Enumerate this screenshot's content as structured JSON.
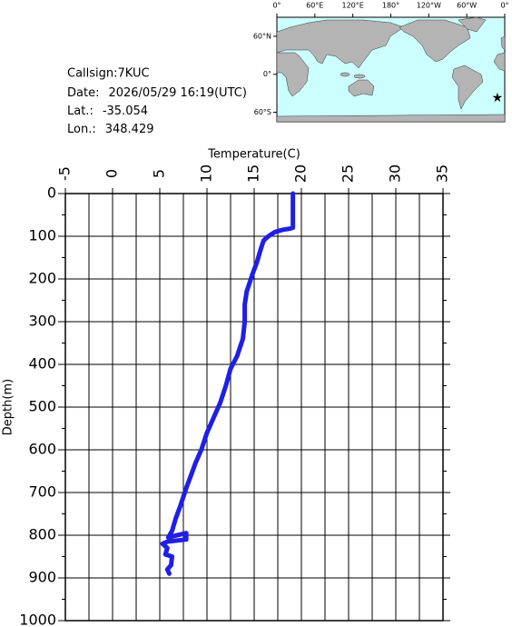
{
  "info": {
    "callsign": "Callsign:7KUC",
    "date_label": "Date:",
    "date": "2026/05/29 16:19(UTC)",
    "lat_label": "Lat.:",
    "lon_label": "Lon.:"
  },
  "map": {
    "type": "map",
    "lonlim": [
      0,
      360
    ],
    "latlim": [
      -75,
      90
    ],
    "lonticks": [
      {
        "value": 0,
        "label": "0°"
      },
      {
        "value": 60,
        "label": "60°E"
      },
      {
        "value": 120,
        "label": "120°E"
      },
      {
        "value": 180,
        "label": "180°"
      },
      {
        "value": 240,
        "label": "120°W"
      },
      {
        "value": 300,
        "label": "60°W"
      },
      {
        "value": 360,
        "label": "0°"
      }
    ],
    "latticks": [
      {
        "value": 60,
        "label": "60°N"
      },
      {
        "value": 0,
        "label": "0°"
      },
      {
        "value": -60,
        "label": "60°S"
      }
    ],
    "station": {
      "lon": 348.429,
      "lat": -35.054,
      "color": "#ff0000"
    }
  },
  "chart_data": {
    "type": "line",
    "xlabel": "Temperature(C)",
    "ylabel": "Depth(m)",
    "color": "#1f1fe6",
    "xlim": [
      -5,
      35
    ],
    "xticks": [
      -5,
      0,
      5,
      10,
      15,
      20,
      25,
      30,
      35
    ],
    "ylim": [
      0,
      1000
    ],
    "yticks": [
      0,
      100,
      200,
      300,
      400,
      500,
      600,
      700,
      800,
      900,
      1000
    ],
    "y_inverted": true,
    "grid": true,
    "x": [
      19.1,
      19.1,
      18.8,
      18,
      17.2,
      16.5,
      16,
      15.7,
      15.3,
      14.8,
      14.5,
      14.2,
      14.0,
      14.0,
      13.8,
      13.2,
      12.5,
      12,
      11.4,
      10.8,
      10,
      9.4,
      8.8,
      8.3,
      7.8,
      7.2,
      6.7,
      6.3,
      5.9,
      7.8,
      7.8,
      5.8,
      5.3,
      5.8,
      5.6,
      6.3,
      6.2,
      5.8,
      6.0
    ],
    "values": [
      0,
      80,
      82,
      85,
      90,
      100,
      110,
      130,
      160,
      190,
      210,
      230,
      260,
      300,
      340,
      380,
      410,
      450,
      490,
      520,
      560,
      600,
      630,
      660,
      690,
      730,
      760,
      790,
      805,
      795,
      810,
      815,
      820,
      830,
      845,
      850,
      870,
      880,
      890
    ]
  }
}
